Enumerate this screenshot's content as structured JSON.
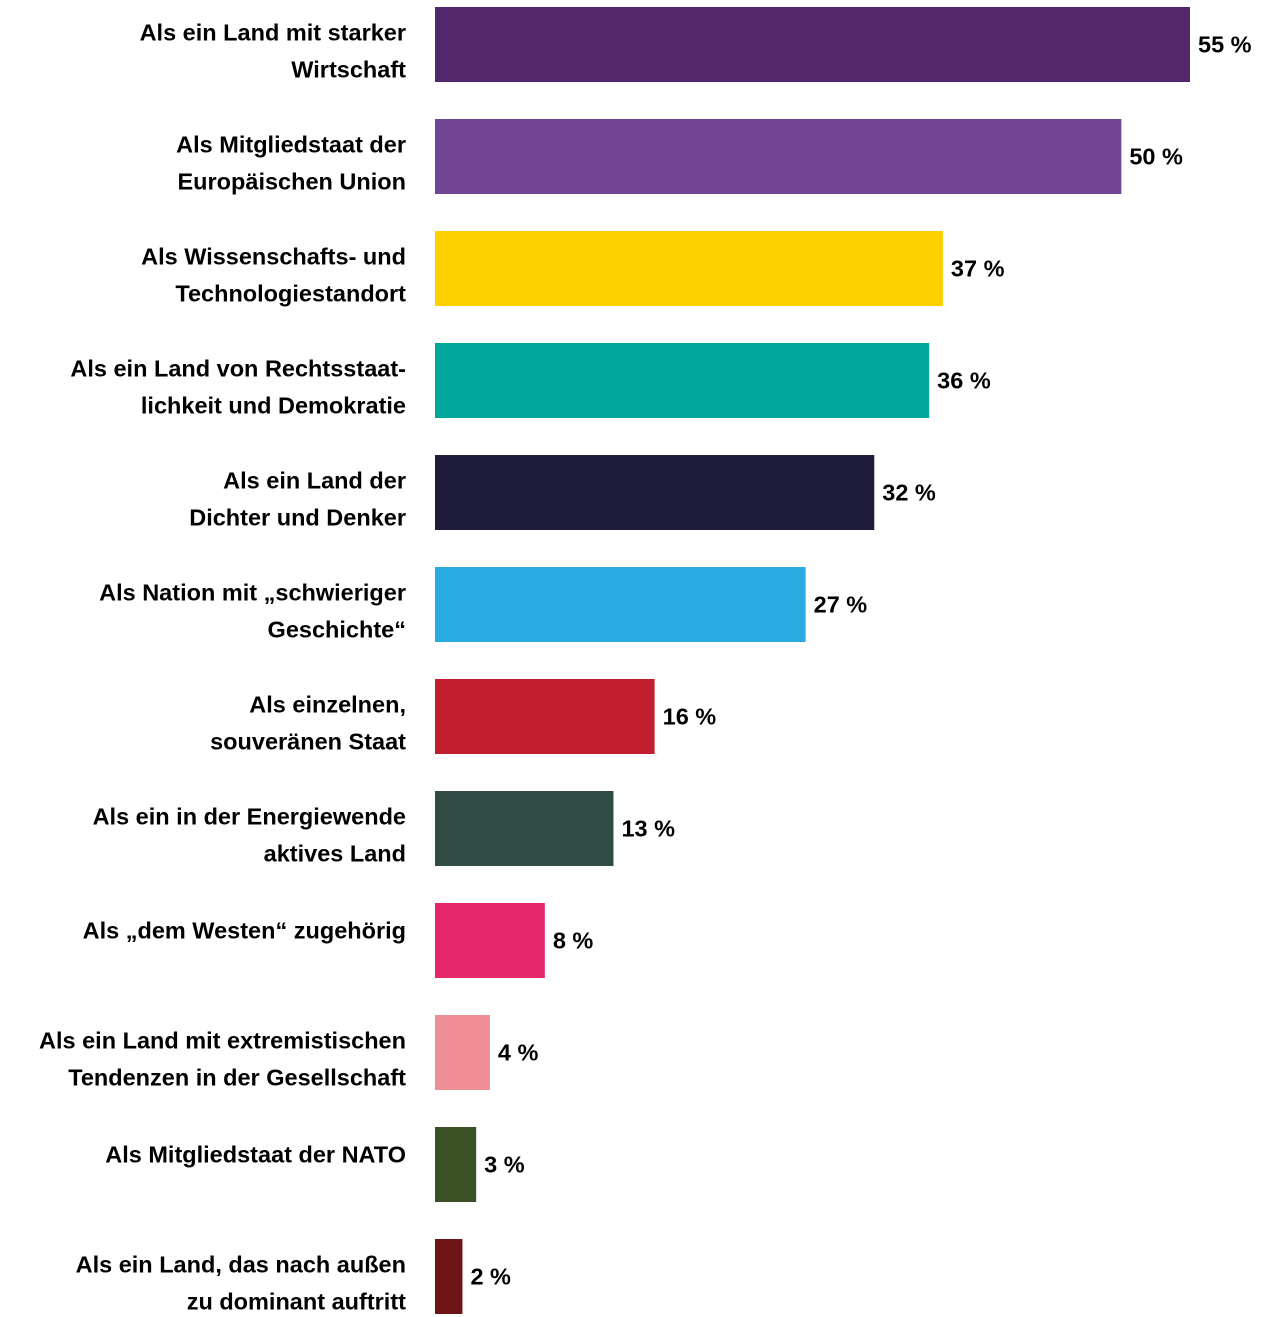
{
  "chart_data": {
    "type": "barh",
    "categories": [
      [
        "Als ein Land mit starker",
        "Wirtschaft"
      ],
      [
        "Als Mitgliedstaat der",
        "Europäischen Union"
      ],
      [
        "Als Wissenschafts- und",
        "Technologiestandort"
      ],
      [
        "Als ein Land von Rechtsstaat-",
        "lichkeit und Demokratie"
      ],
      [
        "Als ein Land der",
        "Dichter und Denker"
      ],
      [
        "Als Nation mit „schwieriger",
        "Geschichte“"
      ],
      [
        "Als einzelnen,",
        "souveränen Staat"
      ],
      [
        "Als ein in der Energiewende",
        "aktives Land"
      ],
      [
        "Als „dem Westen“ zugehörig"
      ],
      [
        "Als ein Land mit extremistischen",
        "Tendenzen in der Gesellschaft"
      ],
      [
        "Als Mitgliedstaat der NATO"
      ],
      [
        "Als ein Land, das nach außen",
        "zu dominant auftritt"
      ]
    ],
    "values": [
      55,
      50,
      37,
      36,
      32,
      27,
      16,
      13,
      8,
      4,
      3,
      2
    ],
    "value_labels": [
      "55 %",
      "50 %",
      "37 %",
      "36 %",
      "32 %",
      "27 %",
      "16 %",
      "13 %",
      "8 %",
      "4 %",
      "3 %",
      "2 %"
    ],
    "colors": [
      "#52266b",
      "#724694",
      "#fdd000",
      "#00a69a",
      "#1f1c3b",
      "#29abe2",
      "#c01e2f",
      "#314b45",
      "#e5266a",
      "#f08e96",
      "#3a4f24",
      "#6d1416"
    ]
  }
}
